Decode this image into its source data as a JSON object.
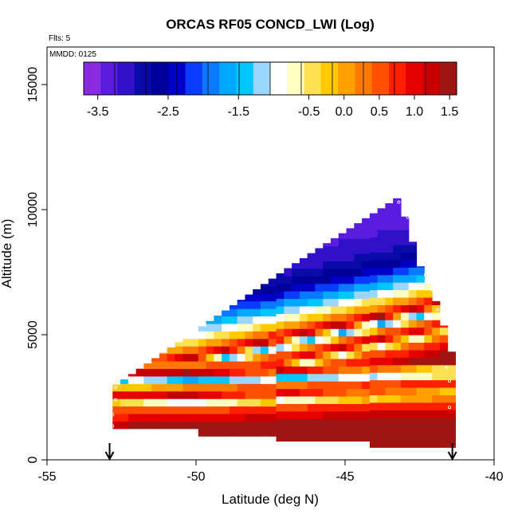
{
  "chart_data": {
    "type": "heatmap",
    "title": "ORCAS RF05 CONCD_LWI (Log)",
    "note_flights": "Flts: 5",
    "note_date": "MMDD: 0125",
    "xlabel": "Latitude (deg N)",
    "ylabel": "Altitude (m)",
    "xlim": [
      -55,
      -40
    ],
    "ylim": [
      0,
      16500
    ],
    "x_ticks": [
      -55,
      -50,
      -45,
      -40
    ],
    "x_tick_labels": [
      "-55",
      "-50",
      "-45",
      "-40"
    ],
    "y_ticks": [
      0,
      5000,
      10000,
      15000
    ],
    "y_tick_labels": [
      "0",
      "5000",
      "10000",
      "15000"
    ],
    "colorbar": {
      "range": [
        -3.7,
        1.6
      ],
      "ticks": [
        -3.5,
        -2.5,
        -1.5,
        -0.5,
        0.0,
        0.5,
        1.0,
        1.5
      ],
      "tick_labels": [
        "-3.5",
        "-2.5",
        "-1.5",
        "-0.5",
        "0.0",
        "0.5",
        "1.0",
        "1.5"
      ],
      "colors": [
        "#8a2be2",
        "#5a1de0",
        "#3010c8",
        "#0a0aa8",
        "#00009a",
        "#0000c8",
        "#0a3cff",
        "#0a78ff",
        "#00a8ff",
        "#00c8ff",
        "#9ad6ff",
        "#ffffff",
        "#ffffc0",
        "#ffe050",
        "#ffc800",
        "#ffa000",
        "#ff7800",
        "#ff5000",
        "#ff1e00",
        "#e60000",
        "#c80000",
        "#a01414"
      ]
    },
    "arrows_at_latitude": [
      -52.9,
      -41.4
    ],
    "field": {
      "lat_min": -52.8,
      "lat_max": -41.3,
      "n_columns": 44,
      "row_height_m": 300,
      "top_altitude_profile": [
        {
          "lat": -52.8,
          "alt": 2900
        },
        {
          "lat": -47.0,
          "alt": 7600
        },
        {
          "lat": -43.2,
          "alt": 10500
        },
        {
          "lat": -42.5,
          "alt": 7800
        },
        {
          "lat": -41.9,
          "alt": 6200
        },
        {
          "lat": -41.3,
          "alt": 3800
        }
      ],
      "bottom_altitude_profile": [
        {
          "lat": -53.0,
          "alt": 1250
        },
        {
          "lat": -50.0,
          "alt": 1250
        },
        {
          "lat": -50.0,
          "alt": 950
        },
        {
          "lat": -47.2,
          "alt": 950
        },
        {
          "lat": -47.2,
          "alt": 750
        },
        {
          "lat": -44.3,
          "alt": 750
        },
        {
          "lat": -44.3,
          "alt": 500
        },
        {
          "lat": -41.3,
          "alt": 500
        }
      ],
      "vertical_profile": [
        {
          "alt": 0,
          "val": 1.4
        },
        {
          "alt": 1300,
          "val": 1.5
        },
        {
          "alt": 1600,
          "val": 1.0
        },
        {
          "alt": 2000,
          "val": 0.4
        },
        {
          "alt": 2200,
          "val": -1.0
        },
        {
          "alt": 2500,
          "val": 1.2
        },
        {
          "alt": 2800,
          "val": 0.2
        },
        {
          "alt": 3100,
          "val": -1.6
        },
        {
          "alt": 3400,
          "val": 1.4
        },
        {
          "alt": 3700,
          "val": 0.3
        },
        {
          "alt": 4200,
          "val": -0.8
        },
        {
          "alt": 4600,
          "val": -1.5
        },
        {
          "alt": 5200,
          "val": -2.4
        },
        {
          "alt": 6000,
          "val": -3.0
        },
        {
          "alt": 7000,
          "val": -3.3
        },
        {
          "alt": 8500,
          "val": -3.5
        },
        {
          "alt": 10600,
          "val": -3.6
        }
      ]
    },
    "sample_points": [
      {
        "lat": -52.7,
        "alt": 2900
      },
      {
        "lat": -52.7,
        "alt": 2400
      },
      {
        "lat": -52.8,
        "alt": 1800
      },
      {
        "lat": -52.8,
        "alt": 1350
      },
      {
        "lat": -43.2,
        "alt": 10300
      },
      {
        "lat": -42.9,
        "alt": 9700
      },
      {
        "lat": -42.7,
        "alt": 9000
      },
      {
        "lat": -42.5,
        "alt": 8000
      },
      {
        "lat": -42.3,
        "alt": 7400
      },
      {
        "lat": -42.1,
        "alt": 6800
      },
      {
        "lat": -41.9,
        "alt": 6000
      },
      {
        "lat": -41.6,
        "alt": 3700
      },
      {
        "lat": -41.5,
        "alt": 3150
      },
      {
        "lat": -41.5,
        "alt": 2100
      }
    ]
  }
}
